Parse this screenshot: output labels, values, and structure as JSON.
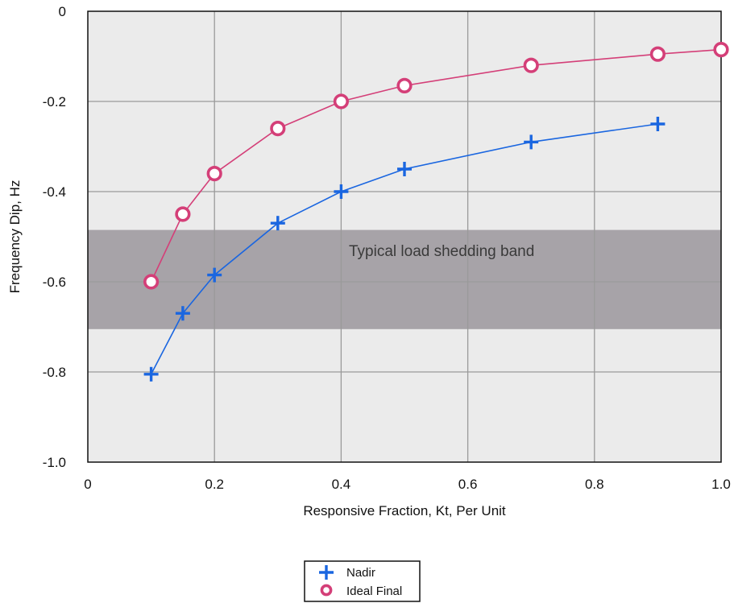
{
  "chart_data": {
    "type": "line",
    "title": "",
    "xlabel": "Responsive Fraction, Kt, Per Unit",
    "ylabel": "Frequency Dip, Hz",
    "xlim": [
      0,
      1.0
    ],
    "ylim": [
      -1.0,
      0
    ],
    "x_ticks": [
      "0",
      "0.2",
      "0.4",
      "0.6",
      "0.8",
      "1.0"
    ],
    "y_ticks": [
      "0",
      "-0.2",
      "-0.4",
      "-0.6",
      "-0.8",
      "-1.0"
    ],
    "grid": true,
    "legend_position": "bottom-center",
    "band": {
      "label": "Typical load shedding band",
      "y_range": [
        -0.705,
        -0.485
      ],
      "color": "#a7a3a8"
    },
    "plot_background": "#ebebeb",
    "series": [
      {
        "name": "Nadir",
        "marker": "plus",
        "color": "#1a66e0",
        "x": [
          0.1,
          0.15,
          0.2,
          0.3,
          0.4,
          0.5,
          0.7,
          0.9
        ],
        "y": [
          -0.805,
          -0.67,
          -0.585,
          -0.47,
          -0.4,
          -0.35,
          -0.29,
          -0.25
        ]
      },
      {
        "name": "Ideal Final",
        "marker": "open-circle",
        "color": "#d43f78",
        "x": [
          0.1,
          0.15,
          0.2,
          0.3,
          0.4,
          0.5,
          0.7,
          0.9,
          1.0
        ],
        "y": [
          -0.6,
          -0.45,
          -0.36,
          -0.26,
          -0.2,
          -0.165,
          -0.12,
          -0.095,
          -0.085
        ]
      }
    ]
  }
}
